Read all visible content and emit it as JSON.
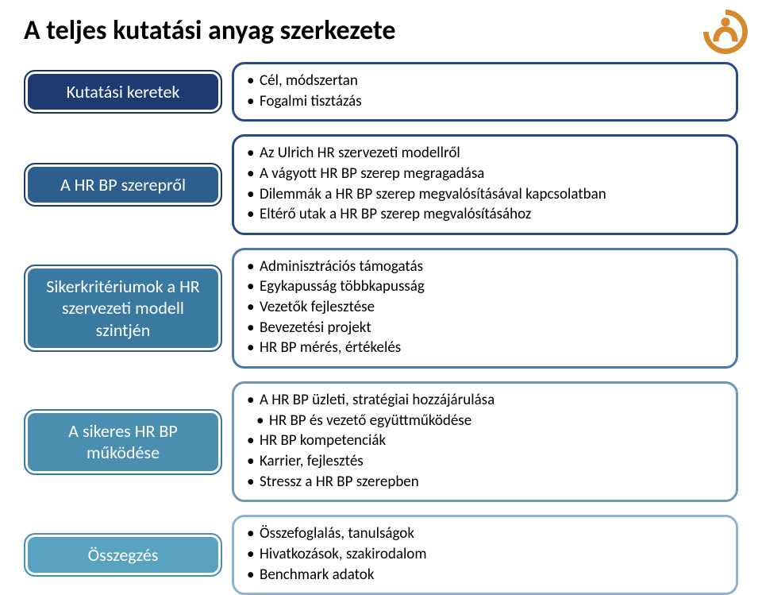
{
  "title": "A teljes kutatási anyag szerkezete",
  "colors": {
    "row1_pill_bg": "#1f3a70",
    "row1_pill_border": "#16335e",
    "row1_panel_border": "#2a4a8c",
    "row2_pill_bg": "#2c5f8d",
    "row2_pill_border": "#1f3a70",
    "row2_panel_border": "#2a4a8c",
    "row3_pill_bg": "#3a7aa0",
    "row3_pill_border": "#2c5f8d",
    "row3_panel_border": "#4a79a5",
    "row4_pill_bg": "#4a8fb0",
    "row4_pill_border": "#3a7aa0",
    "row4_panel_border": "#6e97b8",
    "row5_pill_bg": "#5aa3c0",
    "row5_pill_border": "#4a8fb0",
    "row5_panel_border": "#8fb3cc",
    "logo_color": "#d68a2e"
  },
  "rows": [
    {
      "pill": "Kutatási keretek",
      "items": [
        {
          "text": "Cél, módszertan",
          "sub": false
        },
        {
          "text": "Fogalmi tisztázás",
          "sub": false
        }
      ]
    },
    {
      "pill": "A HR BP szerepről",
      "items": [
        {
          "text": "Az Ulrich HR szervezeti modellről",
          "sub": false
        },
        {
          "text": "A vágyott HR BP szerep megragadása",
          "sub": false
        },
        {
          "text": "Dilemmák a HR BP szerep megvalósításával kapcsolatban",
          "sub": false
        },
        {
          "text": "Eltérő utak a HR BP szerep megvalósításához",
          "sub": false
        }
      ]
    },
    {
      "pill": "Sikerkritériumok a HR szervezeti modell szintjén",
      "items": [
        {
          "text": "Adminisztrációs  támogatás",
          "sub": false
        },
        {
          "text": "Egykapusság többkapusság",
          "sub": false
        },
        {
          "text": "Vezetők fejlesztése",
          "sub": false
        },
        {
          "text": "Bevezetési projekt",
          "sub": false
        },
        {
          "text": "HR BP mérés, értékelés",
          "sub": false
        }
      ]
    },
    {
      "pill": "A sikeres HR BP működése",
      "items": [
        {
          "text": "A HR BP üzleti, stratégiai hozzájárulása",
          "sub": false
        },
        {
          "text": "HR BP és vezető együttműködése",
          "sub": true
        },
        {
          "text": "HR BP kompetenciák",
          "sub": false
        },
        {
          "text": "Karrier, fejlesztés",
          "sub": false
        },
        {
          "text": "Stressz a HR BP szerepben",
          "sub": false
        }
      ]
    },
    {
      "pill": "Összegzés",
      "items": [
        {
          "text": "Összefoglalás, tanulságok",
          "sub": false
        },
        {
          "text": "Hivatkozások, szakirodalom",
          "sub": false
        },
        {
          "text": "Benchmark adatok",
          "sub": false
        }
      ]
    }
  ]
}
